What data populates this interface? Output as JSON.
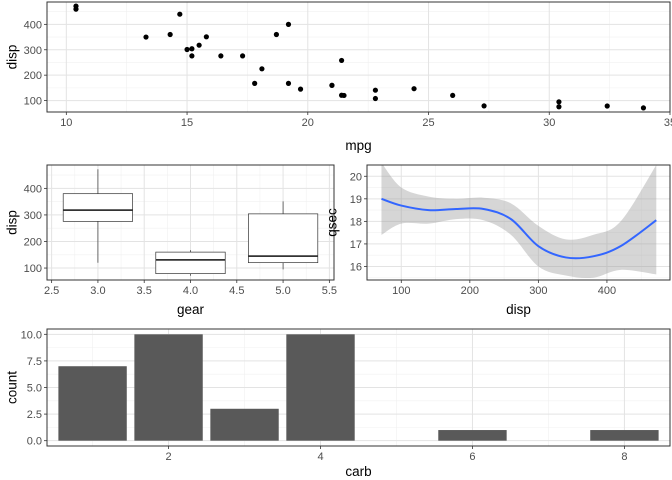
{
  "chart_data": [
    {
      "id": "scatter",
      "type": "scatter",
      "xlabel": "mpg",
      "ylabel": "disp",
      "xlim": [
        9.2,
        35
      ],
      "ylim": [
        55,
        488
      ],
      "xticks": [
        10,
        15,
        20,
        25,
        30,
        35
      ],
      "yticks": [
        100,
        200,
        300,
        400
      ],
      "xtick_labels": [
        "10",
        "15",
        "20",
        "25",
        "30",
        "35"
      ],
      "ytick_labels": [
        "100",
        "200",
        "300",
        "400"
      ],
      "grid": true,
      "point_color": "#000000",
      "points": [
        {
          "x": 21.0,
          "y": 160
        },
        {
          "x": 21.0,
          "y": 160
        },
        {
          "x": 22.8,
          "y": 108
        },
        {
          "x": 21.4,
          "y": 258
        },
        {
          "x": 18.7,
          "y": 360
        },
        {
          "x": 18.1,
          "y": 225
        },
        {
          "x": 14.3,
          "y": 360
        },
        {
          "x": 24.4,
          "y": 146.7
        },
        {
          "x": 22.8,
          "y": 140.8
        },
        {
          "x": 19.2,
          "y": 167.6
        },
        {
          "x": 17.8,
          "y": 167.6
        },
        {
          "x": 16.4,
          "y": 275.8
        },
        {
          "x": 17.3,
          "y": 275.8
        },
        {
          "x": 15.2,
          "y": 275.8
        },
        {
          "x": 10.4,
          "y": 472
        },
        {
          "x": 10.4,
          "y": 460
        },
        {
          "x": 14.7,
          "y": 440
        },
        {
          "x": 32.4,
          "y": 78.7
        },
        {
          "x": 30.4,
          "y": 75.7
        },
        {
          "x": 33.9,
          "y": 71.1
        },
        {
          "x": 21.5,
          "y": 120.1
        },
        {
          "x": 15.5,
          "y": 318
        },
        {
          "x": 15.2,
          "y": 304
        },
        {
          "x": 13.3,
          "y": 350
        },
        {
          "x": 19.2,
          "y": 400
        },
        {
          "x": 27.3,
          "y": 79
        },
        {
          "x": 26.0,
          "y": 120.3
        },
        {
          "x": 30.4,
          "y": 95.1
        },
        {
          "x": 15.8,
          "y": 351
        },
        {
          "x": 19.7,
          "y": 145
        },
        {
          "x": 15.0,
          "y": 301
        },
        {
          "x": 21.4,
          "y": 121
        }
      ]
    },
    {
      "id": "boxplot",
      "type": "box",
      "xlabel": "gear",
      "ylabel": "disp",
      "xlim": [
        2.45,
        5.55
      ],
      "ylim": [
        55,
        488
      ],
      "xticks": [
        2.5,
        3.0,
        3.5,
        4.0,
        4.5,
        5.0,
        5.5
      ],
      "yticks": [
        100,
        200,
        300,
        400
      ],
      "xtick_labels": [
        "2.5",
        "3.0",
        "3.5",
        "4.0",
        "4.5",
        "5.0",
        "5.5"
      ],
      "ytick_labels": [
        "100",
        "200",
        "300",
        "400"
      ],
      "grid": true,
      "box_half_width": 0.375,
      "boxes": [
        {
          "x": 3,
          "min": 120.1,
          "q1": 275.8,
          "median": 318,
          "q3": 380,
          "max": 472
        },
        {
          "x": 4,
          "min": 71.1,
          "q1": 78.9,
          "median": 130.9,
          "q3": 160,
          "max": 167.6
        },
        {
          "x": 5,
          "min": 95.1,
          "q1": 120.3,
          "median": 145,
          "q3": 304,
          "max": 351
        }
      ]
    },
    {
      "id": "smooth",
      "type": "line",
      "xlabel": "disp",
      "ylabel": "qsec",
      "xlim": [
        50,
        492
      ],
      "ylim": [
        15.4,
        20.5
      ],
      "xticks": [
        100,
        200,
        300,
        400
      ],
      "yticks": [
        16,
        17,
        18,
        19,
        20
      ],
      "xtick_labels": [
        "100",
        "200",
        "300",
        "400"
      ],
      "ytick_labels": [
        "16",
        "17",
        "18",
        "19",
        "20"
      ],
      "grid": true,
      "line_color": "#3366FF",
      "band_color": "#999999",
      "x": [
        71.1,
        100,
        140,
        180,
        220,
        260,
        300,
        340,
        380,
        420,
        472
      ],
      "y": [
        19.0,
        18.7,
        18.5,
        18.55,
        18.55,
        18.1,
        16.9,
        16.4,
        16.45,
        16.9,
        18.05
      ],
      "ymin": [
        17.4,
        17.9,
        17.9,
        18.1,
        18.05,
        17.4,
        16.0,
        15.6,
        15.5,
        15.85,
        15.65
      ],
      "ymax": [
        20.6,
        19.5,
        19.1,
        19.0,
        19.05,
        18.8,
        17.8,
        17.2,
        17.4,
        18.0,
        20.5
      ]
    },
    {
      "id": "bars",
      "type": "bar",
      "xlabel": "carb",
      "ylabel": "count",
      "xlim": [
        0.4,
        8.6
      ],
      "ylim": [
        -0.5,
        10.5
      ],
      "xticks": [
        2,
        4,
        6,
        8
      ],
      "yticks": [
        0,
        2.5,
        5,
        7.5,
        10
      ],
      "xtick_labels": [
        "2",
        "4",
        "6",
        "8"
      ],
      "ytick_labels": [
        "0.0",
        "2.5",
        "5.0",
        "7.5",
        "10.0"
      ],
      "grid": true,
      "bar_color": "#595959",
      "bar_width": 0.9,
      "categories": [
        1,
        2,
        3,
        4,
        6,
        8
      ],
      "values": [
        7,
        10,
        3,
        10,
        1,
        1
      ]
    }
  ]
}
